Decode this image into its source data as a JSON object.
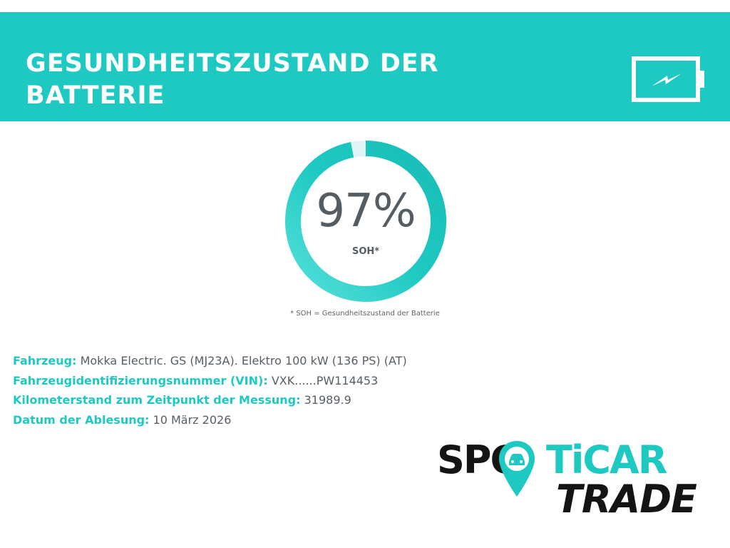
{
  "header": {
    "title": "GESUNDHEITSZUSTAND DER BATTERIE",
    "icon": "battery-charging-icon",
    "background_color": "#1ec9c2"
  },
  "gauge": {
    "value_text": "97%",
    "value": 97,
    "label": "SOH*",
    "footnote": "* SOH = Gesundheitszustand der Batterie",
    "ring_color": "#1ec9c2"
  },
  "details": [
    {
      "key": "Fahrzeug:",
      "value": "Mokka Electric. GS (MJ23A). Elektro 100 kW (136 PS) (AT)"
    },
    {
      "key": "Fahrzeugidentifizierungsnummer (VIN):",
      "value": "VXK......PW114453"
    },
    {
      "key": "Kilometerstand zum Zeitpunkt der Messung:",
      "value": "31989.9"
    },
    {
      "key": "Datum der Ablesung:",
      "value": "10 März 2026"
    }
  ],
  "logo": {
    "line1_dark": "SPO",
    "line1_accent": "TiCAR",
    "line2": "TRADE",
    "pin_icon": "location-pin-car-icon",
    "accent_color": "#1ec9c2",
    "dark_color": "#141414"
  }
}
